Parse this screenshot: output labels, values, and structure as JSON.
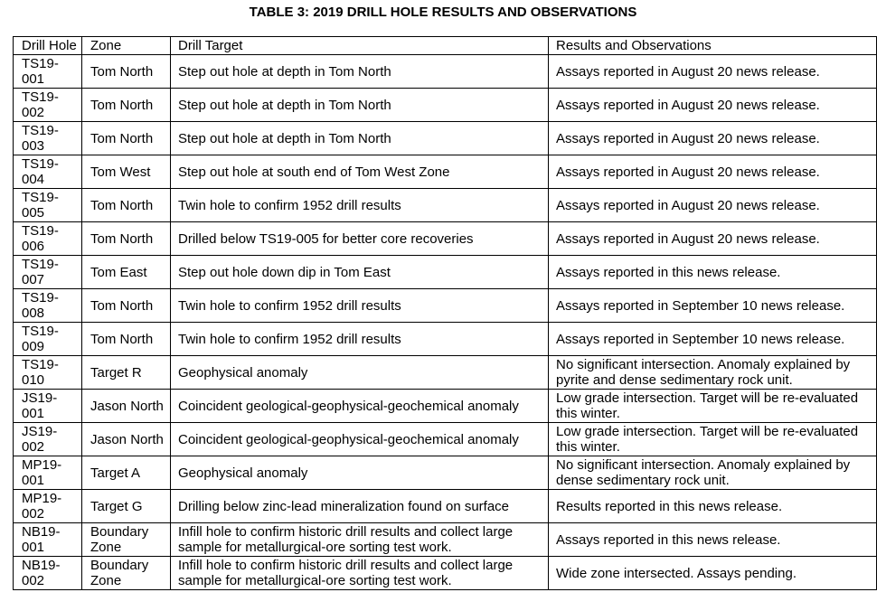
{
  "title": "TABLE 3: 2019 DRILL HOLE RESULTS AND OBSERVATIONS",
  "table": {
    "header": [
      "Drill Hole",
      "Zone",
      "Drill Target",
      "Results and Observations"
    ],
    "rows": [
      [
        "TS19-001",
        "Tom North",
        "Step out hole at depth in Tom North",
        "Assays reported in August 20 news release."
      ],
      [
        "TS19-002",
        "Tom North",
        "Step out hole at depth in Tom North",
        "Assays reported in August 20 news release."
      ],
      [
        "TS19-003",
        "Tom North",
        "Step out hole at depth in Tom North",
        "Assays reported in August 20 news release."
      ],
      [
        "TS19-004",
        "Tom West",
        "Step out hole at south end of Tom West Zone",
        "Assays reported in August 20 news release."
      ],
      [
        "TS19-005",
        "Tom North",
        "Twin hole to confirm 1952 drill results",
        "Assays reported in August 20 news release."
      ],
      [
        "TS19-006",
        "Tom North",
        "Drilled below TS19-005 for better core recoveries",
        "Assays reported in August 20 news release."
      ],
      [
        "TS19-007",
        "Tom East",
        "Step out hole down dip in Tom East",
        "Assays reported in this news release."
      ],
      [
        "TS19-008",
        "Tom North",
        "Twin hole to confirm 1952 drill results",
        "Assays reported in September 10 news release."
      ],
      [
        "TS19-009",
        "Tom North",
        "Twin hole to confirm 1952 drill results",
        "Assays reported in September 10 news release."
      ],
      [
        "TS19-010",
        "Target R",
        "Geophysical anomaly",
        "No significant intersection. Anomaly explained by pyrite and dense sedimentary rock unit."
      ],
      [
        "JS19-001",
        "Jason North",
        "Coincident geological-geophysical-geochemical anomaly",
        "Low grade intersection. Target will be re-evaluated this winter."
      ],
      [
        "JS19-002",
        "Jason North",
        "Coincident geological-geophysical-geochemical anomaly",
        "Low grade intersection. Target will be re-evaluated this winter."
      ],
      [
        "MP19-001",
        "Target A",
        "Geophysical anomaly",
        "No significant intersection. Anomaly explained by dense sedimentary rock unit."
      ],
      [
        "MP19-002",
        "Target G",
        "Drilling below zinc-lead mineralization found on surface",
        "Results reported in this news release."
      ],
      [
        "NB19-001",
        "Boundary Zone",
        "Infill hole to confirm historic drill results and collect large sample for metallurgical-ore sorting test work.",
        "Assays reported in this news release."
      ],
      [
        "NB19-002",
        "Boundary Zone",
        "Infill hole to confirm historic drill results and collect large sample for metallurgical-ore sorting test work.",
        "Wide zone intersected. Assays pending."
      ]
    ]
  }
}
